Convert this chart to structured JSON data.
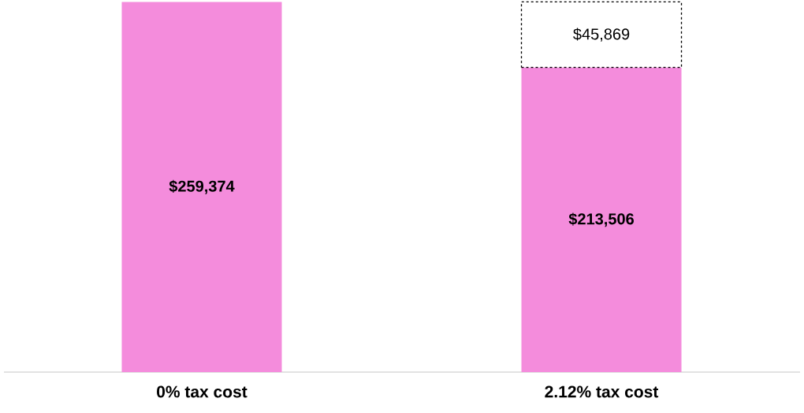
{
  "chart_data": {
    "type": "bar",
    "stacked": true,
    "categories": [
      "0% tax cost",
      "2.12% tax cost"
    ],
    "series": [
      {
        "color": "#f48cdc",
        "values": [
          259374,
          213506
        ],
        "value_labels": [
          "$259,374",
          "$213,506"
        ]
      },
      {
        "color": "#ffffff",
        "line_style": "dashed",
        "values": [
          null,
          45869
        ],
        "value_labels": [
          null,
          "$45,869"
        ]
      }
    ]
  }
}
